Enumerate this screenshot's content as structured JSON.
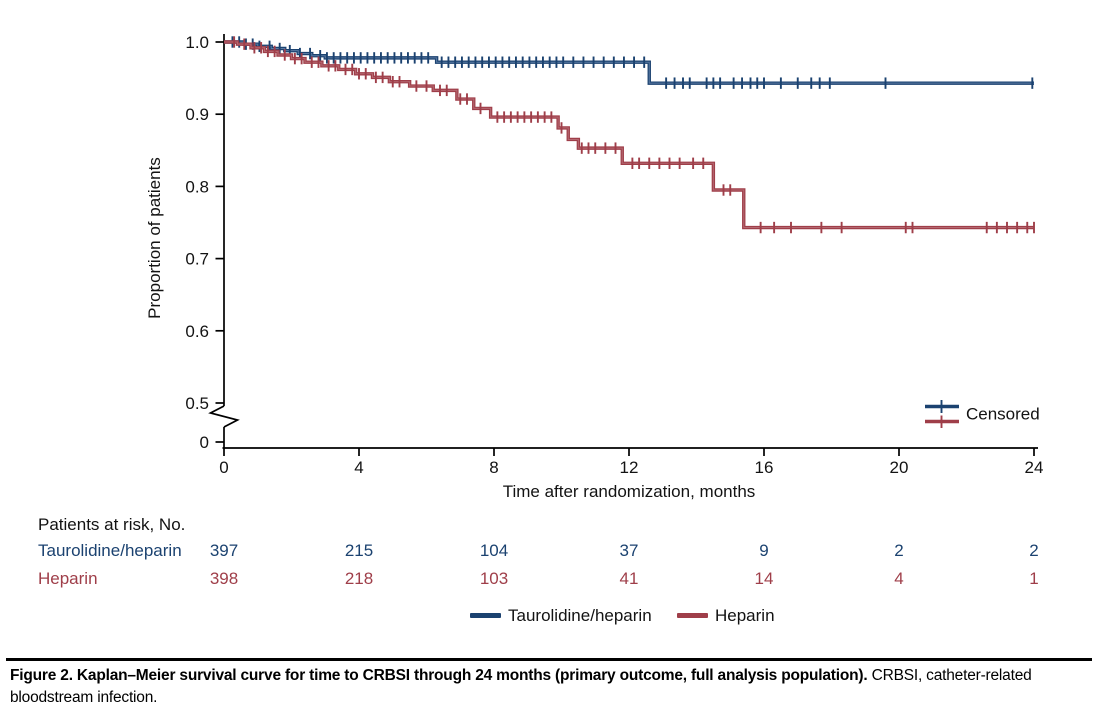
{
  "chart_data": {
    "type": "line",
    "subtype": "kaplan-meier-step",
    "title": "",
    "xlabel": "Time after randomization, months",
    "ylabel": "Proportion of patients",
    "xlim": [
      0,
      24
    ],
    "ylim_shown": [
      0.5,
      1.0
    ],
    "axis_break_between": [
      0,
      0.5
    ],
    "grid": false,
    "x_ticks": [
      0,
      4,
      8,
      12,
      16,
      20,
      24
    ],
    "y_ticks": [
      {
        "label": "1.0",
        "value": 1.0
      },
      {
        "label": "0.9",
        "value": 0.9
      },
      {
        "label": "0.8",
        "value": 0.8
      },
      {
        "label": "0.7",
        "value": 0.7
      },
      {
        "label": "0.6",
        "value": 0.6
      },
      {
        "label": "0.5",
        "value": 0.5
      },
      {
        "label": "0",
        "value": 0
      }
    ],
    "censored_legend_label": "Censored",
    "series": [
      {
        "name": "Taurolidine/heparin",
        "color": "#1b4270",
        "highlight": "#8fa9cc",
        "steps": [
          [
            0,
            1.0
          ],
          [
            0.6,
            0.997
          ],
          [
            1.0,
            0.994
          ],
          [
            1.4,
            0.991
          ],
          [
            1.8,
            0.988
          ],
          [
            2.2,
            0.984
          ],
          [
            2.6,
            0.981
          ],
          [
            3.0,
            0.978
          ],
          [
            6.3,
            0.972
          ],
          [
            12.6,
            0.943
          ]
        ],
        "end_time": 24,
        "end_value": 0.943,
        "censor_times": [
          0.25,
          0.45,
          0.65,
          0.85,
          1.05,
          1.35,
          1.65,
          1.95,
          2.25,
          2.55,
          2.85,
          3.05,
          3.25,
          3.45,
          3.65,
          3.85,
          4.05,
          4.25,
          4.45,
          4.65,
          4.85,
          5.05,
          5.25,
          5.45,
          5.65,
          5.85,
          6.05,
          6.45,
          6.65,
          6.85,
          7.05,
          7.25,
          7.45,
          7.65,
          7.85,
          8.05,
          8.25,
          8.45,
          8.65,
          8.85,
          9.05,
          9.25,
          9.45,
          9.65,
          9.85,
          10.05,
          10.35,
          10.65,
          10.95,
          11.25,
          11.55,
          11.85,
          12.15,
          12.45,
          13.1,
          13.35,
          13.6,
          13.8,
          14.3,
          14.5,
          14.7,
          15.1,
          15.35,
          15.6,
          15.8,
          16.0,
          16.5,
          17.0,
          17.4,
          17.65,
          17.95,
          19.6,
          23.95
        ]
      },
      {
        "name": "Heparin",
        "color": "#9f3e49",
        "highlight": "#c78a92",
        "steps": [
          [
            0,
            1.0
          ],
          [
            0.4,
            0.997
          ],
          [
            0.8,
            0.992
          ],
          [
            1.2,
            0.987
          ],
          [
            1.6,
            0.982
          ],
          [
            2.0,
            0.977
          ],
          [
            2.4,
            0.972
          ],
          [
            2.9,
            0.967
          ],
          [
            3.4,
            0.962
          ],
          [
            3.9,
            0.956
          ],
          [
            4.4,
            0.951
          ],
          [
            4.9,
            0.945
          ],
          [
            5.5,
            0.939
          ],
          [
            6.2,
            0.933
          ],
          [
            6.9,
            0.921
          ],
          [
            7.4,
            0.908
          ],
          [
            7.9,
            0.896
          ],
          [
            9.9,
            0.881
          ],
          [
            10.2,
            0.865
          ],
          [
            10.5,
            0.853
          ],
          [
            11.8,
            0.832
          ],
          [
            14.5,
            0.795
          ],
          [
            15.4,
            0.743
          ]
        ],
        "end_time": 24,
        "end_value": 0.743,
        "censor_times": [
          0.3,
          0.6,
          0.9,
          1.1,
          1.3,
          1.5,
          1.8,
          2.1,
          2.3,
          2.6,
          2.8,
          3.1,
          3.3,
          3.6,
          3.8,
          4.0,
          4.2,
          4.5,
          4.7,
          5.0,
          5.2,
          5.7,
          6.0,
          6.4,
          6.6,
          7.0,
          7.2,
          7.6,
          8.1,
          8.3,
          8.5,
          8.7,
          8.9,
          9.1,
          9.3,
          9.5,
          9.7,
          10.0,
          10.6,
          10.8,
          11.0,
          11.3,
          11.6,
          12.1,
          12.3,
          12.6,
          12.9,
          13.2,
          13.5,
          13.9,
          14.2,
          14.8,
          15.0,
          15.9,
          16.3,
          16.8,
          17.7,
          18.3,
          20.2,
          20.4,
          22.6,
          22.9,
          23.2,
          23.5,
          23.8,
          24.0
        ]
      }
    ]
  },
  "risk_table": {
    "title": "Patients at risk, No.",
    "times": [
      0,
      4,
      8,
      12,
      16,
      20,
      24
    ],
    "rows": [
      {
        "label": "Taurolidine/heparin",
        "color": "#1b4270",
        "counts": [
          "397",
          "215",
          "104",
          "37",
          "9",
          "2",
          "2"
        ]
      },
      {
        "label": "Heparin",
        "color": "#9f3e49",
        "counts": [
          "398",
          "218",
          "103",
          "41",
          "14",
          "4",
          "1"
        ]
      }
    ]
  },
  "legend": {
    "items": [
      {
        "label": "Taurolidine/heparin",
        "color": "#1b4270"
      },
      {
        "label": "Heparin",
        "color": "#9f3e49"
      }
    ]
  },
  "caption": {
    "bold": "Figure 2. Kaplan–Meier survival curve for time to CRBSI through 24 months (primary outcome, full analysis population).",
    "normal": " CRBSI, catheter-related bloodstream infection."
  }
}
